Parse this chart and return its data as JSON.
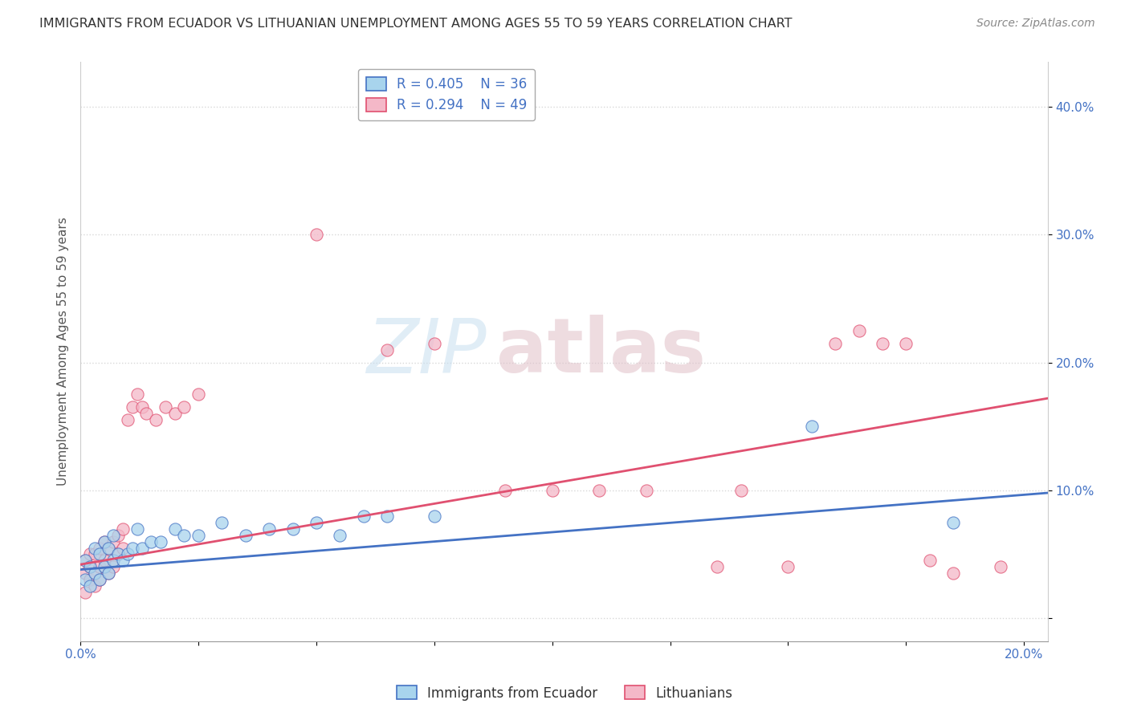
{
  "title": "IMMIGRANTS FROM ECUADOR VS LITHUANIAN UNEMPLOYMENT AMONG AGES 55 TO 59 YEARS CORRELATION CHART",
  "source": "Source: ZipAtlas.com",
  "ylabel": "Unemployment Among Ages 55 to 59 years",
  "legend_entries": [
    {
      "label": "Immigrants from Ecuador",
      "R": "0.405",
      "N": "36",
      "color": "#a8d4ed",
      "line_color": "#4472c4"
    },
    {
      "label": "Lithuanians",
      "R": "0.294",
      "N": "49",
      "color": "#f4b8c8",
      "line_color": "#e05070"
    }
  ],
  "xlim": [
    0.0,
    0.205
  ],
  "ylim": [
    -0.018,
    0.435
  ],
  "xtick_positions": [
    0.0,
    0.025,
    0.05,
    0.075,
    0.1,
    0.125,
    0.15,
    0.175,
    0.2
  ],
  "xtick_labels": [
    "0.0%",
    "",
    "",
    "",
    "",
    "",
    "",
    "",
    "20.0%"
  ],
  "ytick_positions": [
    0.0,
    0.1,
    0.2,
    0.3,
    0.4
  ],
  "ytick_labels": [
    "",
    "10.0%",
    "20.0%",
    "30.0%",
    "40.0%"
  ],
  "blue_points": [
    [
      0.001,
      0.03
    ],
    [
      0.001,
      0.045
    ],
    [
      0.002,
      0.025
    ],
    [
      0.002,
      0.04
    ],
    [
      0.003,
      0.035
    ],
    [
      0.003,
      0.055
    ],
    [
      0.004,
      0.03
    ],
    [
      0.004,
      0.05
    ],
    [
      0.005,
      0.04
    ],
    [
      0.005,
      0.06
    ],
    [
      0.006,
      0.035
    ],
    [
      0.006,
      0.055
    ],
    [
      0.007,
      0.065
    ],
    [
      0.007,
      0.045
    ],
    [
      0.008,
      0.05
    ],
    [
      0.009,
      0.045
    ],
    [
      0.01,
      0.05
    ],
    [
      0.011,
      0.055
    ],
    [
      0.012,
      0.07
    ],
    [
      0.013,
      0.055
    ],
    [
      0.015,
      0.06
    ],
    [
      0.017,
      0.06
    ],
    [
      0.02,
      0.07
    ],
    [
      0.022,
      0.065
    ],
    [
      0.025,
      0.065
    ],
    [
      0.03,
      0.075
    ],
    [
      0.035,
      0.065
    ],
    [
      0.04,
      0.07
    ],
    [
      0.045,
      0.07
    ],
    [
      0.05,
      0.075
    ],
    [
      0.055,
      0.065
    ],
    [
      0.06,
      0.08
    ],
    [
      0.065,
      0.08
    ],
    [
      0.075,
      0.08
    ],
    [
      0.155,
      0.15
    ],
    [
      0.185,
      0.075
    ]
  ],
  "pink_points": [
    [
      0.001,
      0.02
    ],
    [
      0.001,
      0.035
    ],
    [
      0.001,
      0.045
    ],
    [
      0.002,
      0.03
    ],
    [
      0.002,
      0.04
    ],
    [
      0.002,
      0.05
    ],
    [
      0.003,
      0.035
    ],
    [
      0.003,
      0.05
    ],
    [
      0.003,
      0.025
    ],
    [
      0.004,
      0.04
    ],
    [
      0.004,
      0.055
    ],
    [
      0.004,
      0.03
    ],
    [
      0.005,
      0.045
    ],
    [
      0.005,
      0.06
    ],
    [
      0.006,
      0.035
    ],
    [
      0.006,
      0.055
    ],
    [
      0.007,
      0.04
    ],
    [
      0.007,
      0.06
    ],
    [
      0.008,
      0.05
    ],
    [
      0.008,
      0.065
    ],
    [
      0.009,
      0.055
    ],
    [
      0.009,
      0.07
    ],
    [
      0.01,
      0.155
    ],
    [
      0.011,
      0.165
    ],
    [
      0.012,
      0.175
    ],
    [
      0.013,
      0.165
    ],
    [
      0.014,
      0.16
    ],
    [
      0.016,
      0.155
    ],
    [
      0.018,
      0.165
    ],
    [
      0.02,
      0.16
    ],
    [
      0.022,
      0.165
    ],
    [
      0.025,
      0.175
    ],
    [
      0.05,
      0.3
    ],
    [
      0.065,
      0.21
    ],
    [
      0.075,
      0.215
    ],
    [
      0.09,
      0.1
    ],
    [
      0.1,
      0.1
    ],
    [
      0.11,
      0.1
    ],
    [
      0.12,
      0.1
    ],
    [
      0.135,
      0.04
    ],
    [
      0.14,
      0.1
    ],
    [
      0.15,
      0.04
    ],
    [
      0.16,
      0.215
    ],
    [
      0.165,
      0.225
    ],
    [
      0.17,
      0.215
    ],
    [
      0.175,
      0.215
    ],
    [
      0.18,
      0.045
    ],
    [
      0.185,
      0.035
    ],
    [
      0.195,
      0.04
    ]
  ],
  "blue_line": {
    "x0": 0.0,
    "y0": 0.038,
    "x1": 0.205,
    "y1": 0.098
  },
  "pink_line": {
    "x0": 0.0,
    "y0": 0.042,
    "x1": 0.205,
    "y1": 0.172
  },
  "blue_color": "#a8d4ed",
  "pink_color": "#f4b8c8",
  "blue_line_color": "#4472c4",
  "pink_line_color": "#e05070",
  "watermark_zip": "ZIP",
  "watermark_atlas": "atlas",
  "background_color": "#ffffff",
  "grid_color": "#d8d8d8",
  "title_fontsize": 11.5,
  "source_fontsize": 10,
  "tick_fontsize": 11,
  "legend_fontsize": 12
}
